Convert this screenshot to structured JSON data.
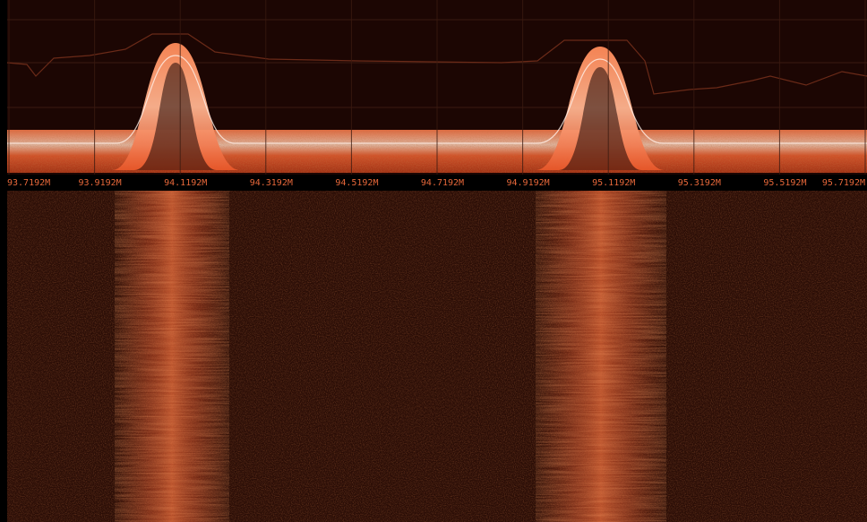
{
  "frequency_axis": {
    "labels": [
      "93.7192M",
      "93.9192M",
      "94.1192M",
      "94.3192M",
      "94.5192M",
      "94.7192M",
      "94.9192M",
      "95.1192M",
      "95.3192M",
      "95.5192M",
      "95.7192M"
    ]
  }
}
